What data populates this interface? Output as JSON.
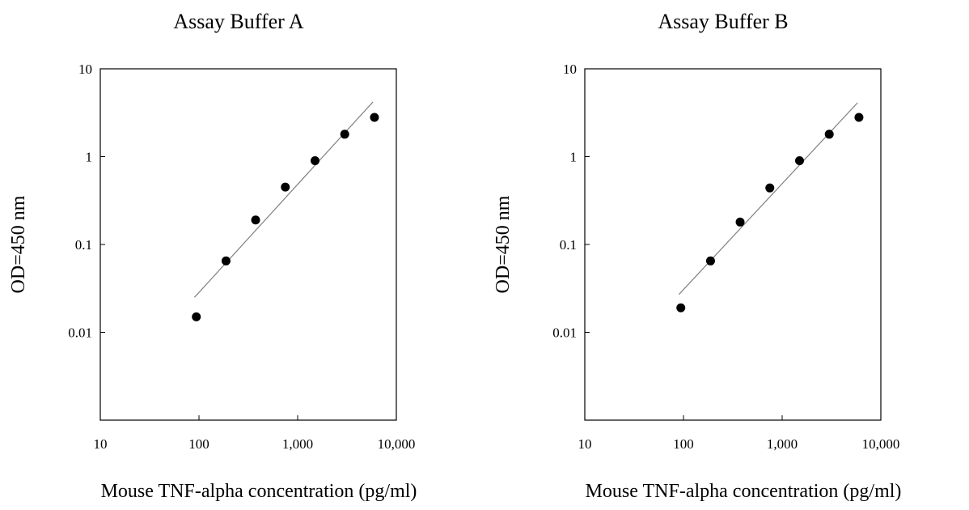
{
  "chart_data": [
    {
      "type": "scatter",
      "title": "Assay Buffer A",
      "xlabel": "Mouse TNF-alpha concentration (pg/ml)",
      "ylabel": "OD=450 nm",
      "x_scale": "log",
      "y_scale": "log",
      "xlim": [
        10,
        10000
      ],
      "ylim": [
        0.001,
        10
      ],
      "x_ticks": [
        10,
        100,
        1000,
        10000
      ],
      "x_tick_labels": [
        "10",
        "100",
        "1,000",
        "10,000"
      ],
      "y_ticks": [
        0.01,
        0.1,
        1,
        10
      ],
      "y_tick_labels": [
        "0.01",
        "0.1",
        "1",
        "10"
      ],
      "grid": false,
      "legend": "none",
      "marker_color": "#000000",
      "trendline_color": "#7f7f7f",
      "series": [
        {
          "x": [
            94,
            188,
            375,
            750,
            1500,
            3000,
            6000
          ],
          "y": [
            0.015,
            0.065,
            0.19,
            0.45,
            0.9,
            1.8,
            2.8
          ]
        }
      ],
      "trendline": {
        "x": [
          90,
          5800
        ],
        "y": [
          0.025,
          4.2
        ]
      }
    },
    {
      "type": "scatter",
      "title": "Assay Buffer B",
      "xlabel": "Mouse TNF-alpha concentration (pg/ml)",
      "ylabel": "OD=450 nm",
      "x_scale": "log",
      "y_scale": "log",
      "xlim": [
        10,
        10000
      ],
      "ylim": [
        0.001,
        10
      ],
      "x_ticks": [
        10,
        100,
        1000,
        10000
      ],
      "x_tick_labels": [
        "10",
        "100",
        "1,000",
        "10,000"
      ],
      "y_ticks": [
        0.01,
        0.1,
        1,
        10
      ],
      "y_tick_labels": [
        "0.01",
        "0.1",
        "1",
        "10"
      ],
      "grid": false,
      "legend": "none",
      "marker_color": "#000000",
      "trendline_color": "#7f7f7f",
      "series": [
        {
          "x": [
            94,
            188,
            375,
            750,
            1500,
            3000,
            6000
          ],
          "y": [
            0.019,
            0.065,
            0.18,
            0.44,
            0.9,
            1.8,
            2.8
          ]
        }
      ],
      "trendline": {
        "x": [
          90,
          5800
        ],
        "y": [
          0.027,
          4.1
        ]
      }
    }
  ]
}
